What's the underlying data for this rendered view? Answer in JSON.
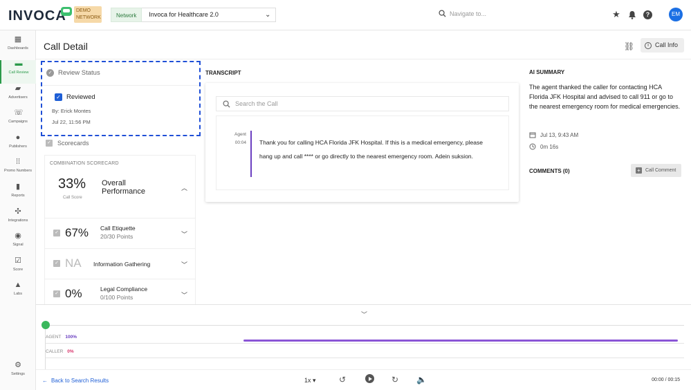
{
  "header": {
    "logo": "INVOCA",
    "demo_badge": "DEMO NETWORK",
    "network_label": "Network",
    "network_value": "Invoca for Healthcare 2.0",
    "search_placeholder": "Navigate to...",
    "avatar_initials": "EM"
  },
  "sidebar": {
    "items": [
      {
        "label": "Dashboards",
        "icon": "grid-icon"
      },
      {
        "label": "Call Review",
        "icon": "chat-icon"
      },
      {
        "label": "Advertisers",
        "icon": "folder-icon"
      },
      {
        "label": "Campaigns",
        "icon": "phone-arrows-icon"
      },
      {
        "label": "Publishers",
        "icon": "users-icon"
      },
      {
        "label": "Promo Numbers",
        "icon": "dialpad-icon"
      },
      {
        "label": "Reports",
        "icon": "bar-chart-icon"
      },
      {
        "label": "Integrations",
        "icon": "network-icon"
      },
      {
        "label": "Signal",
        "icon": "compass-icon"
      },
      {
        "label": "Score",
        "icon": "check-square-icon"
      },
      {
        "label": "Labs",
        "icon": "flask-icon"
      }
    ],
    "settings_label": "Settings"
  },
  "page": {
    "title": "Call Detail",
    "call_info_label": "Call Info"
  },
  "review": {
    "heading": "Review Status",
    "checkbox_label": "Reviewed",
    "reviewer": "By: Erick Montes",
    "date": "Jul 22, 11:56 PM"
  },
  "scorecards": {
    "heading": "Scorecards",
    "combination_label": "COMBINATION SCORECARD",
    "overall": {
      "percent": "33%",
      "label": "Call Score",
      "name": "Overall Performance"
    },
    "rows": [
      {
        "percent": "67%",
        "name": "Call Etiquette",
        "points": "20/30 Points"
      },
      {
        "percent": "NA",
        "name": "Information Gathering",
        "points": ""
      },
      {
        "percent": "0%",
        "name": "Legal Compliance",
        "points": "0/100 Points"
      }
    ]
  },
  "transcript": {
    "heading": "TRANSCRIPT",
    "search_placeholder": "Search the Call",
    "messages": [
      {
        "speaker": "Agent",
        "time": "00:04",
        "text": "Thank you for calling HCA Florida JFK Hospital. If this is a medical emergency, please hang up and call **** or go directly to the nearest emergency room. Adein suksion."
      }
    ]
  },
  "ai_summary": {
    "heading": "AI SUMMARY",
    "text": "The agent thanked the caller for contacting HCA Florida JFK Hospital and advised to call 911 or go to the nearest emergency room for medical emergencies.",
    "date": "Jul 13, 9:43 AM",
    "duration": "0m 16s"
  },
  "comments": {
    "heading": "COMMENTS (0)",
    "button_label": "Call Comment"
  },
  "player": {
    "tracks": [
      {
        "label": "AGENT",
        "percent": "100%",
        "talk_start": 0.31,
        "talk_end": 0.99
      },
      {
        "label": "CALLER",
        "percent": "0%"
      }
    ],
    "back_label": "Back to Search Results",
    "speed": "1x",
    "time": "00:00 / 00:15",
    "progress": 0
  },
  "colors": {
    "brand_green": "#2a9a4a",
    "agent_purple": "#8a55d6",
    "caller_pink": "#d8336a",
    "link_blue": "#1f5fd6"
  }
}
